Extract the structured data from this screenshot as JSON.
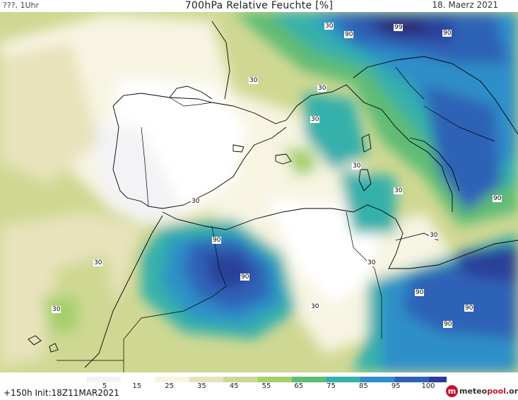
{
  "header": {
    "time_label": "???, 1Uhr",
    "title": "700hPa Relative Feuchte [%]",
    "date": "18. Maerz 2021"
  },
  "map": {
    "contour_labels": [
      "30",
      "90",
      "99",
      "90",
      "30",
      "30",
      "30",
      "30",
      "30",
      "30",
      "90",
      "30",
      "90",
      "90",
      "30",
      "30",
      "90",
      "30",
      "30",
      "90",
      "90",
      "90",
      "30"
    ]
  },
  "colorbar": {
    "ticks": [
      "5",
      "15",
      "25",
      "35",
      "45",
      "55",
      "65",
      "75",
      "85",
      "95",
      "100"
    ],
    "colors": [
      "#f3f3f5",
      "#ffffff",
      "#f7f4e2",
      "#e7e3bb",
      "#cfd892",
      "#a6cf6c",
      "#5fbc74",
      "#35b0aa",
      "#2f8fc8",
      "#2e62b6",
      "#2b3f9a",
      "#2e1d66"
    ]
  },
  "footer": {
    "forecast": "+150h  Init:18Z11MAR2021",
    "logo_icon": "m",
    "logo_text_main": "meteo",
    "logo_text_accent": "pool",
    "logo_text_suffix": ".org"
  }
}
